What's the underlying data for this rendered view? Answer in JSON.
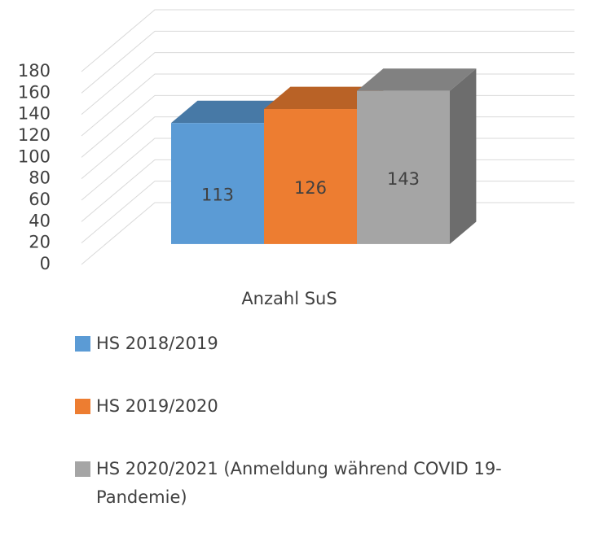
{
  "chart_data": {
    "type": "bar",
    "categories": [
      "Anzahl SuS"
    ],
    "series": [
      {
        "name": "HS 2018/2019",
        "color": "#5b9bd5",
        "values": [
          113
        ]
      },
      {
        "name": "HS 2019/2020",
        "color": "#ed7d31",
        "values": [
          126
        ]
      },
      {
        "name": "HS 2020/2021 (Anmeldung während COVID 19-Pandemie)",
        "color": "#a5a5a5",
        "values": [
          143
        ]
      }
    ],
    "ylim": [
      0,
      180
    ],
    "yticks": [
      0,
      20,
      40,
      60,
      80,
      100,
      120,
      140,
      160,
      180
    ],
    "grid": true,
    "legend": "bottom"
  }
}
